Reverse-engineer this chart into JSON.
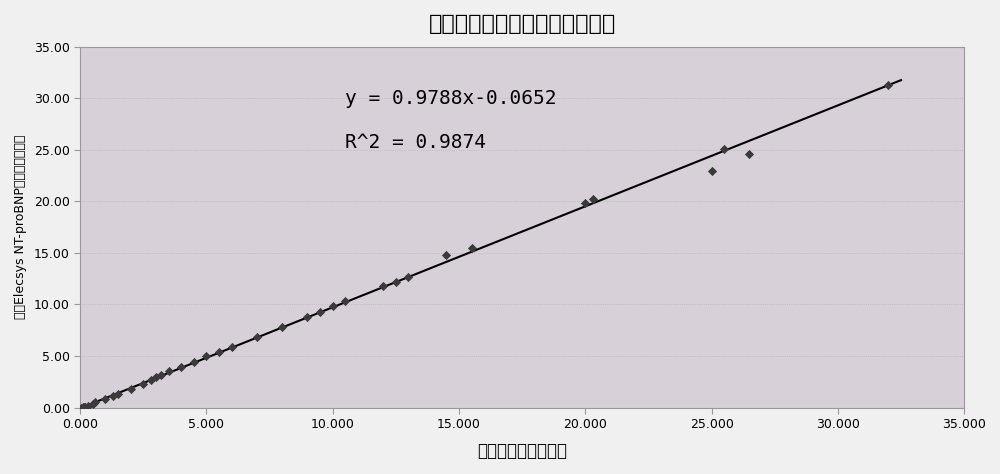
{
  "title": "本发明试剂测得血清相关性结果",
  "xlabel": "本发明试剂测得结果",
  "ylabel": "罗氏Elecsys NT-proBNP试剂盒测得结果",
  "equation_line1": "y = 0.9788x-0.0652",
  "equation_line2": "R^2 = 0.9874",
  "xlim": [
    0,
    35
  ],
  "ylim": [
    0,
    35
  ],
  "xticks": [
    0.0,
    5.0,
    10.0,
    15.0,
    20.0,
    25.0,
    30.0,
    35.0
  ],
  "yticks": [
    0.0,
    5.0,
    10.0,
    15.0,
    20.0,
    25.0,
    30.0,
    35.0
  ],
  "xtick_labels": [
    "0.000",
    "5.000",
    "10.000",
    "15.000",
    "20.000",
    "25.000",
    "30.000",
    "35.000"
  ],
  "ytick_labels": [
    "0.00",
    "5.00",
    "10.00",
    "15.00",
    "20.00",
    "25.00",
    "30.00",
    "35.00"
  ],
  "scatter_x": [
    0.05,
    0.1,
    0.15,
    0.2,
    0.3,
    0.5,
    0.6,
    1.0,
    1.3,
    1.5,
    2.0,
    2.5,
    2.8,
    3.0,
    3.2,
    3.5,
    4.0,
    4.5,
    5.0,
    5.5,
    6.0,
    7.0,
    8.0,
    9.0,
    9.5,
    10.0,
    10.5,
    12.0,
    12.5,
    13.0,
    14.5,
    15.5,
    20.0,
    20.3,
    25.0,
    25.5,
    26.5,
    32.0
  ],
  "scatter_y": [
    0.0,
    0.05,
    0.1,
    0.1,
    0.2,
    0.35,
    0.5,
    0.8,
    1.1,
    1.3,
    1.8,
    2.3,
    2.7,
    3.0,
    3.2,
    3.5,
    3.9,
    4.4,
    5.0,
    5.4,
    5.9,
    6.8,
    7.8,
    8.8,
    9.3,
    9.8,
    10.3,
    11.8,
    12.2,
    12.7,
    14.8,
    15.5,
    19.8,
    20.2,
    22.9,
    25.1,
    24.6,
    31.3
  ],
  "line_slope": 0.9788,
  "line_intercept": -0.0652,
  "plot_bg_color": "#d8d0d8",
  "outer_bg_color": "#f0f0f0",
  "scatter_color": "#3a3a3a",
  "line_color": "#000000",
  "title_fontsize": 16,
  "label_fontsize": 12,
  "tick_fontsize": 9,
  "annot_fontsize": 14
}
